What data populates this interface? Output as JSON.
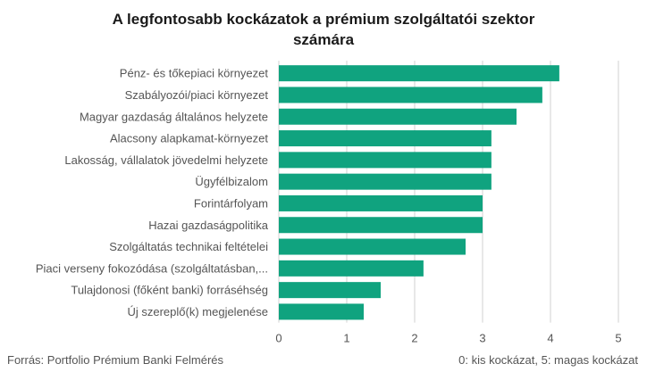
{
  "colors": {
    "bar": "#10a37f",
    "grid": "#d0d0d0",
    "label": "#555555",
    "title": "#1a1a1a"
  },
  "chart_data": {
    "type": "bar",
    "orientation": "horizontal",
    "title_lines": [
      "A legfontosabb kockázatok a prémium szolgáltatói szektor",
      "számára"
    ],
    "categories": [
      "Pénz- és tőkepiaci környezet",
      "Szabályozói/piaci környezet",
      "Magyar gazdaság általános helyzete",
      "Alacsony alapkamat-környezet",
      "Lakosság, vállalatok jövedelmi helyzete",
      "Ügyfélbizalom",
      "Forintárfolyam",
      "Hazai gazdaságpolitika",
      "Szolgáltatás technikai feltételei",
      "Piaci verseny fokozódása (szolgáltatásban,...",
      "Tulajdonosi (főként banki) forráséhség",
      "Új szereplő(k) megjelenése"
    ],
    "values": [
      4.13,
      3.88,
      3.5,
      3.13,
      3.13,
      3.13,
      3.0,
      3.0,
      2.75,
      2.13,
      1.5,
      1.25
    ],
    "xlim": [
      0,
      5
    ],
    "xticks": [
      "0",
      "1",
      "2",
      "3",
      "4",
      "5"
    ],
    "grid": true,
    "source": "Forrás: Portfolio Prémium Banki Felmérés",
    "scale_note": "0: kis kockázat, 5: magas kockázat"
  }
}
